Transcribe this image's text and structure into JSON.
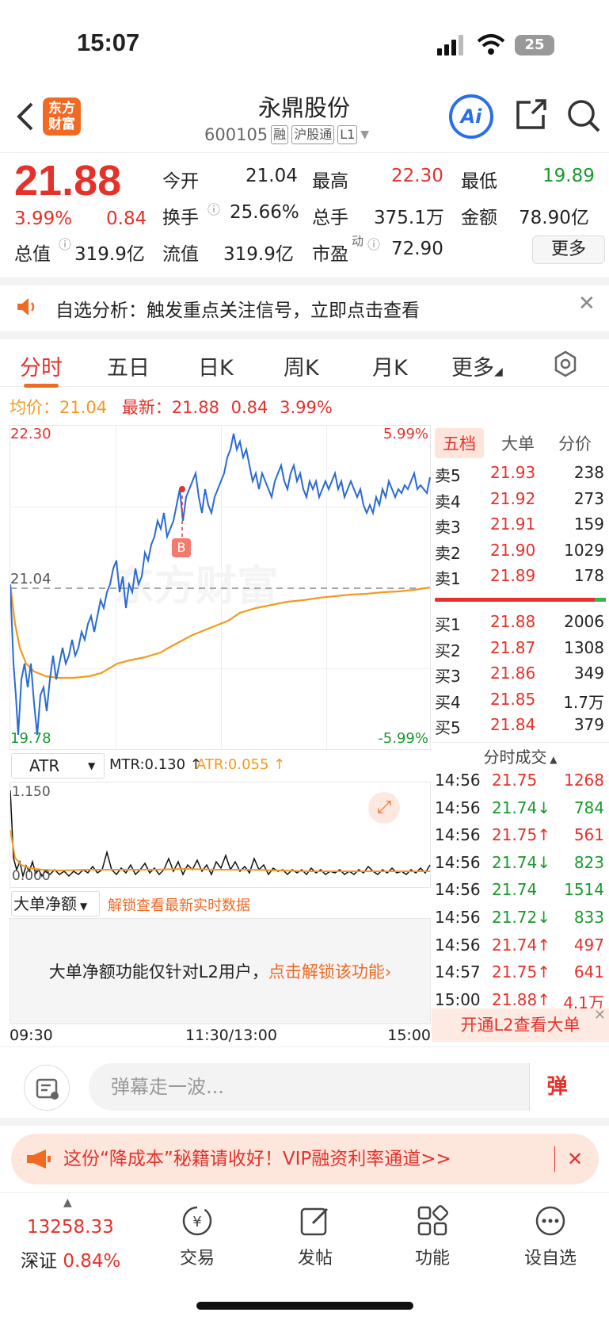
{
  "status_bar": {
    "time": "15:07",
    "battery": "25"
  },
  "header": {
    "logo_text": "东方财富",
    "stock_name": "永鼎股份",
    "stock_code": "600105",
    "tags": [
      "融",
      "沪股通",
      "L1"
    ],
    "ai_label": "Ai"
  },
  "quote": {
    "price": "21.88",
    "change_pct": "3.99%",
    "change": "0.84",
    "open_label": "今开",
    "open": "21.04",
    "high_label": "最高",
    "high": "22.30",
    "low_label": "最低",
    "low": "19.89",
    "turnover_label": "换手",
    "turnover": "25.66%",
    "volume_label": "总手",
    "volume": "375.1万",
    "amount_label": "金额",
    "amount": "78.90亿",
    "total_cap_label": "总值",
    "total_cap": "319.9亿",
    "float_cap_label": "流值",
    "float_cap": "319.9亿",
    "pe_label": "市盈",
    "pe_sup": "动",
    "pe": "72.90",
    "more_label": "更多"
  },
  "notice": {
    "text": "自选分析：触发重点关注信号，立即点击查看"
  },
  "tabs": [
    "分时",
    "五日",
    "日K",
    "周K",
    "月K",
    "更多"
  ],
  "info_line": {
    "avg_label": "均价：",
    "avg": "21.04",
    "latest_label": "最新：",
    "latest": "21.88",
    "change": "0.84",
    "pct": "3.99%"
  },
  "chart": {
    "y_top": "22.30",
    "y_mid": "21.04",
    "y_bottom": "19.78",
    "pct_top": "5.99%",
    "pct_bottom": "-5.99%",
    "marker": "B",
    "watermark": "东方财富",
    "time_start": "09:30",
    "time_mid": "11:30/13:00",
    "time_end": "15:00",
    "colors": {
      "price_line": "#2a6ad4",
      "avg_line": "#f39a1e"
    }
  },
  "atr": {
    "selector": "ATR",
    "mtr": "MTR:0.130 ↑",
    "atr_val": "ATR:0.055 ↑",
    "y_top": "1.150",
    "y_bottom": "0.000"
  },
  "big_order": {
    "selector": "大单净额",
    "unlock": "解锁查看最新实时数据",
    "msg": "大单净额功能仅针对L2用户，",
    "link": "点击解锁该功能"
  },
  "order_book": {
    "tabs": [
      "五档",
      "大单",
      "分价"
    ],
    "asks": [
      {
        "label": "卖5",
        "price": "21.93",
        "vol": "238"
      },
      {
        "label": "卖4",
        "price": "21.92",
        "vol": "273"
      },
      {
        "label": "卖3",
        "price": "21.91",
        "vol": "159"
      },
      {
        "label": "卖2",
        "price": "21.90",
        "vol": "1029"
      },
      {
        "label": "卖1",
        "price": "21.89",
        "vol": "178"
      }
    ],
    "bids": [
      {
        "label": "买1",
        "price": "21.88",
        "vol": "2006"
      },
      {
        "label": "买2",
        "price": "21.87",
        "vol": "1308"
      },
      {
        "label": "买3",
        "price": "21.86",
        "vol": "349"
      },
      {
        "label": "买4",
        "price": "21.85",
        "vol": "1.7万"
      },
      {
        "label": "买5",
        "price": "21.84",
        "vol": "379"
      }
    ],
    "ticks_title": "分时成交",
    "ticks": [
      {
        "t": "14:56",
        "p": "21.75",
        "v": "1268",
        "c": "red"
      },
      {
        "t": "14:56",
        "p": "21.74↓",
        "v": "784",
        "c": "green"
      },
      {
        "t": "14:56",
        "p": "21.75↑",
        "v": "561",
        "c": "red"
      },
      {
        "t": "14:56",
        "p": "21.74↓",
        "v": "823",
        "c": "green"
      },
      {
        "t": "14:56",
        "p": "21.74",
        "v": "1514",
        "c": "green"
      },
      {
        "t": "14:56",
        "p": "21.72↓",
        "v": "833",
        "c": "green"
      },
      {
        "t": "14:56",
        "p": "21.74↑",
        "v": "497",
        "c": "red"
      },
      {
        "t": "14:57",
        "p": "21.75↑",
        "v": "641",
        "c": "red"
      },
      {
        "t": "15:00",
        "p": "21.88↑",
        "v": "4.1万",
        "c": "red"
      }
    ],
    "l2_button": "开通L2查看大单"
  },
  "danmu": {
    "placeholder": "弹幕走一波...",
    "send": "弹"
  },
  "promo": {
    "text": "这份“降成本”秘籍请收好！VIP融资利率通道>>"
  },
  "bottom_nav": {
    "index_value": "13258.33",
    "index_name": "深证",
    "index_pct": "0.84%",
    "items": [
      "交易",
      "发帖",
      "功能",
      "设自选"
    ]
  }
}
